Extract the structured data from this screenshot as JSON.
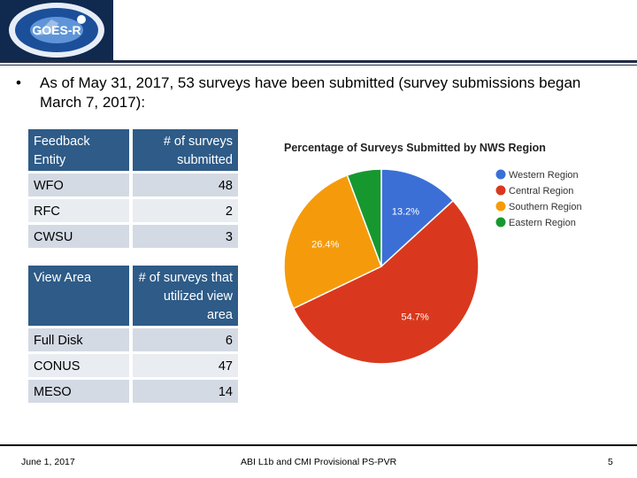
{
  "logo": {
    "text": "GOES-R"
  },
  "bullet": {
    "marker": "•",
    "text": "As of May 31, 2017, 53 surveys have been submitted (survey submissions began March 7, 2017):"
  },
  "table1": {
    "headers": [
      "Feedback Entity",
      "# of surveys submitted"
    ],
    "rows": [
      [
        "WFO",
        "48"
      ],
      [
        "RFC",
        "2"
      ],
      [
        "CWSU",
        "3"
      ]
    ]
  },
  "table2": {
    "headers": [
      "View Area",
      "# of surveys that utilized view area"
    ],
    "rows": [
      [
        "Full Disk",
        "6"
      ],
      [
        "CONUS",
        "47"
      ],
      [
        "MESO",
        "14"
      ]
    ]
  },
  "chart_data": {
    "type": "pie",
    "title": "Percentage of Surveys Submitted by NWS Region",
    "categories": [
      "Western Region",
      "Central Region",
      "Southern Region",
      "Eastern Region"
    ],
    "values": [
      13.2,
      54.7,
      26.4,
      5.7
    ],
    "labels": [
      "13.2%",
      "54.7%",
      "26.4%",
      ""
    ],
    "colors": [
      "#3b6fd6",
      "#d9381e",
      "#f59b0b",
      "#17982f"
    ],
    "legend_position": "right"
  },
  "footer": {
    "date": "June 1, 2017",
    "title": "ABI L1b and CMI Provisional PS-PVR",
    "page": "5"
  }
}
